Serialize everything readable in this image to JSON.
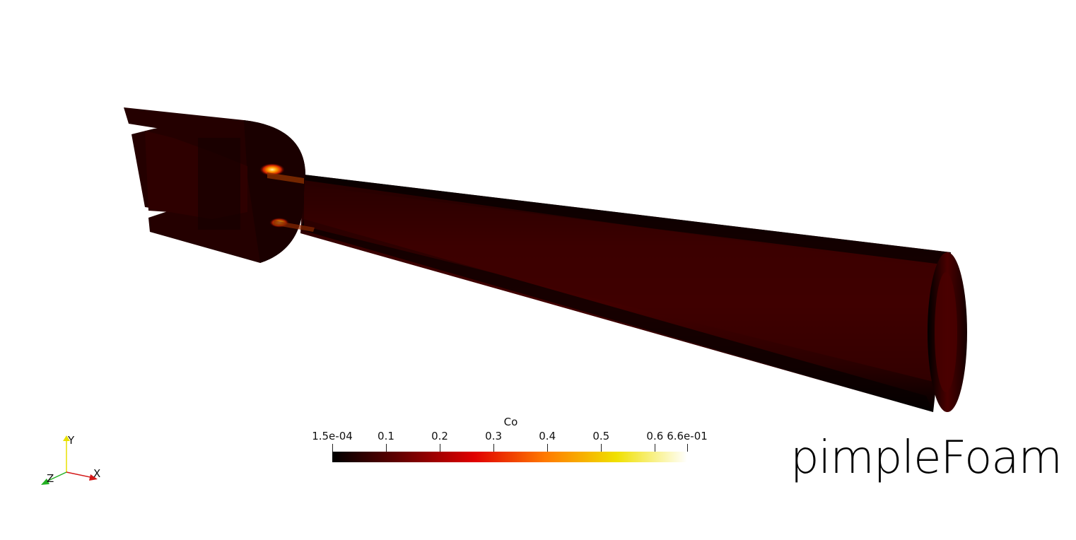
{
  "window": {
    "title": "pimpleFoam"
  },
  "scene": {
    "field": "Co",
    "geometry": "nozzle-cutaway"
  },
  "colorbar": {
    "title": "Co",
    "range": [
      0.00015,
      0.66
    ],
    "ticks": [
      {
        "label": "1.5e-04",
        "value": 0.00015
      },
      {
        "label": "0.1",
        "value": 0.1
      },
      {
        "label": "0.2",
        "value": 0.2
      },
      {
        "label": "0.3",
        "value": 0.3
      },
      {
        "label": "0.4",
        "value": 0.4
      },
      {
        "label": "0.5",
        "value": 0.5
      },
      {
        "label": "0.6",
        "value": 0.6
      },
      {
        "label": "6.6e-01",
        "value": 0.66
      }
    ],
    "colormap": [
      "#000000",
      "#6a0000",
      "#e00000",
      "#ff7a00",
      "#f0e000",
      "#ffffff"
    ]
  },
  "solver_label": "pimpleFoam",
  "axes": {
    "x_label": "X",
    "y_label": "Y",
    "z_label": "Z",
    "x_color": "#d41818",
    "y_color": "#e8e000",
    "z_color": "#22b022"
  }
}
